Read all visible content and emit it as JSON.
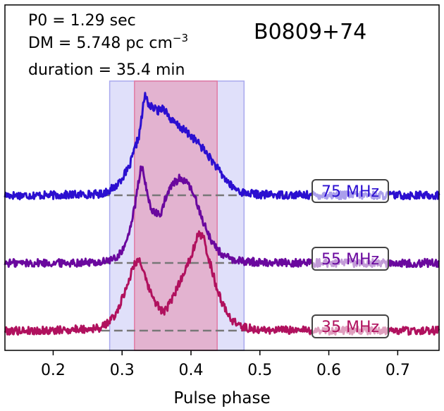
{
  "chart_data": {
    "type": "line",
    "title": "B0809+74",
    "annotations": [
      "P0 = 1.29 sec",
      "DM = 5.748 pc cm",
      "duration = 35.4 min"
    ],
    "dm_unit_exponent": "−3",
    "xlabel": "Pulse phase",
    "ylabel": "",
    "xlim": [
      0.13,
      0.76
    ],
    "x_ticks": [
      0.2,
      0.3,
      0.4,
      0.5,
      0.6,
      0.7
    ],
    "x_tick_labels": [
      "0.2",
      "0.3",
      "0.4",
      "0.5",
      "0.6",
      "0.7"
    ],
    "grid": false,
    "shaded_regions": [
      {
        "x0": 0.282,
        "x1": 0.477,
        "color": "#c6c6f5"
      },
      {
        "x0": 0.318,
        "x1": 0.438,
        "color": "#e3aac8"
      }
    ],
    "series": [
      {
        "name": "75 MHz",
        "color": "#2b0fd0",
        "baseline_level": 2.0,
        "x": [
          0.13,
          0.2,
          0.27,
          0.29,
          0.31,
          0.325,
          0.333,
          0.34,
          0.352,
          0.36,
          0.372,
          0.385,
          0.4,
          0.415,
          0.43,
          0.445,
          0.46,
          0.475,
          0.5,
          0.6,
          0.76
        ],
        "values": [
          0,
          0,
          0.02,
          0.12,
          0.4,
          0.9,
          1.48,
          1.32,
          1.25,
          1.3,
          1.1,
          1.0,
          0.88,
          0.72,
          0.52,
          0.3,
          0.12,
          0.04,
          0.01,
          0,
          0
        ]
      },
      {
        "name": "55 MHz",
        "color": "#6a089e",
        "baseline_level": 1.0,
        "x": [
          0.13,
          0.2,
          0.27,
          0.29,
          0.305,
          0.318,
          0.328,
          0.338,
          0.345,
          0.355,
          0.362,
          0.372,
          0.383,
          0.39,
          0.4,
          0.41,
          0.42,
          0.43,
          0.445,
          0.46,
          0.5,
          0.6,
          0.76
        ],
        "values": [
          0,
          0,
          0.01,
          0.06,
          0.25,
          0.8,
          1.45,
          0.95,
          0.75,
          0.7,
          0.92,
          1.15,
          1.25,
          1.22,
          1.1,
          0.85,
          0.55,
          0.32,
          0.12,
          0.04,
          0.01,
          0,
          0
        ]
      },
      {
        "name": "35 MHz",
        "color": "#b0115e",
        "baseline_level": 0.0,
        "x": [
          0.13,
          0.2,
          0.27,
          0.29,
          0.305,
          0.318,
          0.326,
          0.335,
          0.345,
          0.355,
          0.362,
          0.372,
          0.385,
          0.4,
          0.41,
          0.418,
          0.425,
          0.435,
          0.445,
          0.46,
          0.475,
          0.5,
          0.6,
          0.76
        ],
        "values": [
          0,
          0,
          0.04,
          0.22,
          0.6,
          1.0,
          1.05,
          0.72,
          0.48,
          0.32,
          0.28,
          0.45,
          0.75,
          1.1,
          1.42,
          1.38,
          1.1,
          0.72,
          0.4,
          0.15,
          0.05,
          0.01,
          0,
          0
        ]
      }
    ],
    "labels": [
      "75 MHz",
      "55 MHz",
      "35 MHz"
    ]
  }
}
